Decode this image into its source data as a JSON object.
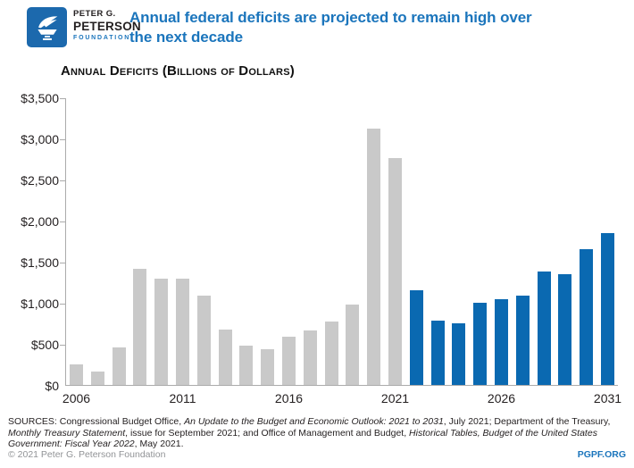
{
  "header": {
    "brand": {
      "line1": "PETER G.",
      "line2": "PETERSON",
      "line3": "FOUNDATION"
    },
    "title_lines": [
      "Annual federal deficits are projected to remain high over",
      "the next decade"
    ]
  },
  "chart_data": {
    "type": "bar",
    "title": "Annual Deficits (Billions of Dollars)",
    "xlabel": "",
    "ylabel": "Billions of Dollars",
    "x": [
      2006,
      2007,
      2008,
      2009,
      2010,
      2011,
      2012,
      2013,
      2014,
      2015,
      2016,
      2017,
      2018,
      2019,
      2020,
      2021,
      2022,
      2023,
      2024,
      2025,
      2026,
      2027,
      2028,
      2029,
      2030,
      2031
    ],
    "values": [
      248,
      161,
      459,
      1413,
      1294,
      1300,
      1087,
      679,
      485,
      438,
      585,
      665,
      779,
      984,
      3132,
      2772,
      1153,
      789,
      756,
      1007,
      1047,
      1086,
      1389,
      1355,
      1655,
      1857
    ],
    "projected_start_year": 2022,
    "actual_color": "#C9C9C9",
    "projected_color": "#0A69B1",
    "ylim": [
      0,
      3500
    ],
    "ytick_step": 500,
    "ytick_labels": [
      "$0",
      "$500",
      "$1,000",
      "$1,500",
      "$2,000",
      "$2,500",
      "$3,000",
      "$3,500"
    ],
    "xtick_years": [
      2006,
      2011,
      2016,
      2021,
      2026,
      2031
    ],
    "grid": false,
    "legend": "none"
  },
  "sources": {
    "segments": [
      {
        "text": "SOURCES: Congressional Budget Office, ",
        "italic": false
      },
      {
        "text": "An Update to the Budget and Economic Outlook: 2021 to 2031",
        "italic": true
      },
      {
        "text": ", July 2021; Department of the Treasury, ",
        "italic": false
      },
      {
        "text": "Monthly Treasury Statement",
        "italic": true
      },
      {
        "text": ", issue for September 2021; and Office of Management and Budget, ",
        "italic": false
      },
      {
        "text": "Historical Tables, Budget of the United States Government: Fiscal Year 2022",
        "italic": true
      },
      {
        "text": ", May 2021.",
        "italic": false
      }
    ]
  },
  "footer": {
    "copyright": "© 2021 Peter G. Peterson Foundation",
    "site": "PGPF.ORG"
  },
  "colors": {
    "title_blue": "#1B75BC",
    "logo_blue": "#1C69AD",
    "bar_gray": "#C9C9C9",
    "bar_blue": "#0A69B1",
    "axis_gray": "#ABABAB",
    "text_black": "#231F20",
    "copyright_gray": "#919396"
  }
}
